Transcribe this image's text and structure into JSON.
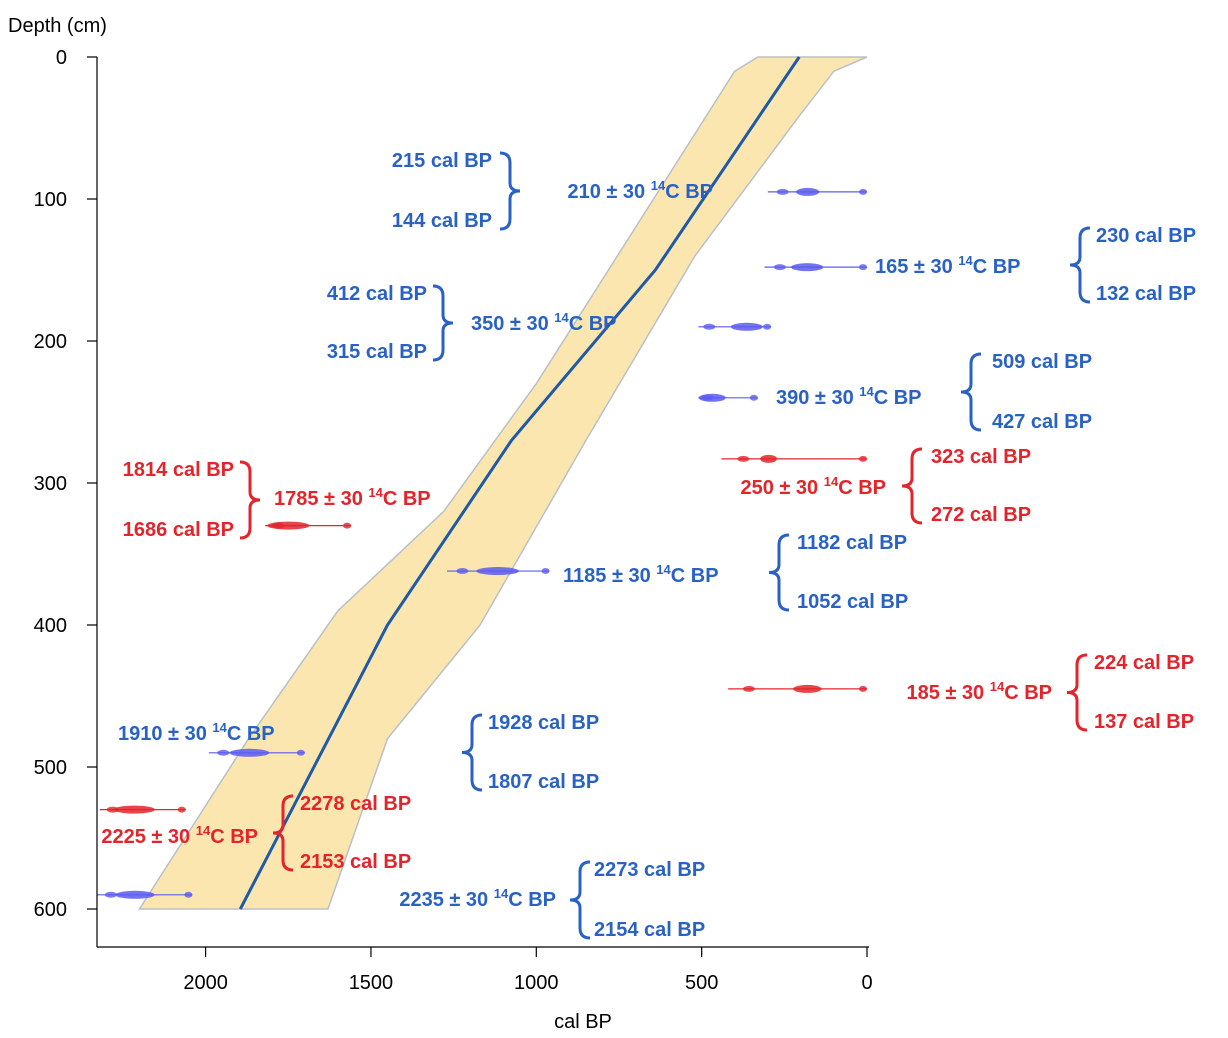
{
  "chart_data": {
    "type": "line",
    "xlabel": "cal BP",
    "ylabel": "Depth (cm)",
    "xlim": [
      2350,
      0
    ],
    "ylim": [
      0,
      625
    ],
    "x_ticks": [
      2000,
      1500,
      1000,
      500,
      0
    ],
    "y_ticks": [
      0,
      100,
      200,
      300,
      400,
      500,
      600
    ],
    "colors": {
      "model_line": "#1f5aa6",
      "envelope_fill": "#fbe6b0",
      "envelope_edge": "#b9c0c6",
      "accepted": "#2962c4",
      "accepted_dist": "#5b5bf0",
      "rejected": "#e3242b",
      "rejected_dist": "#e3242b"
    },
    "series": [
      {
        "name": "",
        "role": "age-depth model",
        "points": [
          [
            1895,
            600
          ],
          [
            1450,
            400
          ],
          [
            1075,
            270
          ],
          [
            640,
            150
          ],
          [
            205,
            0
          ]
        ]
      }
    ],
    "envelope": {
      "upper_points": [
        [
          2200,
          600
        ],
        [
          1870,
          480
        ],
        [
          1600,
          390
        ],
        [
          1280,
          320
        ],
        [
          1000,
          230
        ],
        [
          700,
          120
        ],
        [
          400,
          10
        ],
        [
          330,
          0
        ]
      ],
      "lower_points": [
        [
          1630,
          600
        ],
        [
          1450,
          480
        ],
        [
          1170,
          400
        ],
        [
          850,
          270
        ],
        [
          520,
          140
        ],
        [
          200,
          40
        ],
        [
          100,
          10
        ],
        [
          0,
          0
        ]
      ]
    },
    "dates": [
      {
        "label": "210 ± 30",
        "sup": "14",
        "unit": "C BP",
        "hi": "215 cal BP",
        "lo": "144 cal BP",
        "depth": 95,
        "range": [
          300,
          0
        ],
        "status": "accepted"
      },
      {
        "label": "165 ± 30",
        "sup": "14",
        "unit": "C BP",
        "hi": "230 cal BP",
        "lo": "132 cal BP",
        "depth": 148,
        "range": [
          310,
          0
        ],
        "status": "accepted"
      },
      {
        "label": "350 ± 30",
        "sup": "14",
        "unit": "C BP",
        "hi": "412 cal BP",
        "lo": "315 cal BP",
        "depth": 190,
        "range": [
          510,
          290
        ],
        "status": "accepted"
      },
      {
        "label": "390 ± 30",
        "sup": "14",
        "unit": "C BP",
        "hi": "509 cal BP",
        "lo": "427 cal BP",
        "depth": 240,
        "range": [
          510,
          330
        ],
        "status": "accepted"
      },
      {
        "label": "250 ± 30",
        "sup": "14",
        "unit": "C BP",
        "hi": "323 cal BP",
        "lo": "272 cal BP",
        "depth": 283,
        "range": [
          440,
          0
        ],
        "status": "rejected"
      },
      {
        "label": "1785 ± 30",
        "sup": "14",
        "unit": "C BP",
        "hi": "1814 cal BP",
        "lo": "1686 cal BP",
        "depth": 330,
        "range": [
          1820,
          1560
        ],
        "status": "rejected"
      },
      {
        "label": "1185 ± 30",
        "sup": "14",
        "unit": "C BP",
        "hi": "1182 cal BP",
        "lo": "1052 cal BP",
        "depth": 362,
        "range": [
          1270,
          960
        ],
        "status": "accepted"
      },
      {
        "label": "185 ± 30",
        "sup": "14",
        "unit": "C BP",
        "hi": "224 cal BP",
        "lo": "137 cal BP",
        "depth": 445,
        "range": [
          420,
          0
        ],
        "status": "rejected"
      },
      {
        "label": "1910 ± 30",
        "sup": "14",
        "unit": "C BP",
        "hi": "1928 cal BP",
        "lo": "1807 cal BP",
        "depth": 490,
        "range": [
          1990,
          1700
        ],
        "status": "accepted"
      },
      {
        "label": "2225 ± 30",
        "sup": "14",
        "unit": "C BP",
        "hi": "2278 cal BP",
        "lo": "2153 cal BP",
        "depth": 530,
        "range": [
          2320,
          2060
        ],
        "status": "rejected"
      },
      {
        "label": "2235 ± 30",
        "sup": "14",
        "unit": "C BP",
        "hi": "2273 cal BP",
        "lo": "2154 cal BP",
        "depth": 590,
        "range": [
          2330,
          2040
        ],
        "status": "accepted"
      }
    ]
  }
}
